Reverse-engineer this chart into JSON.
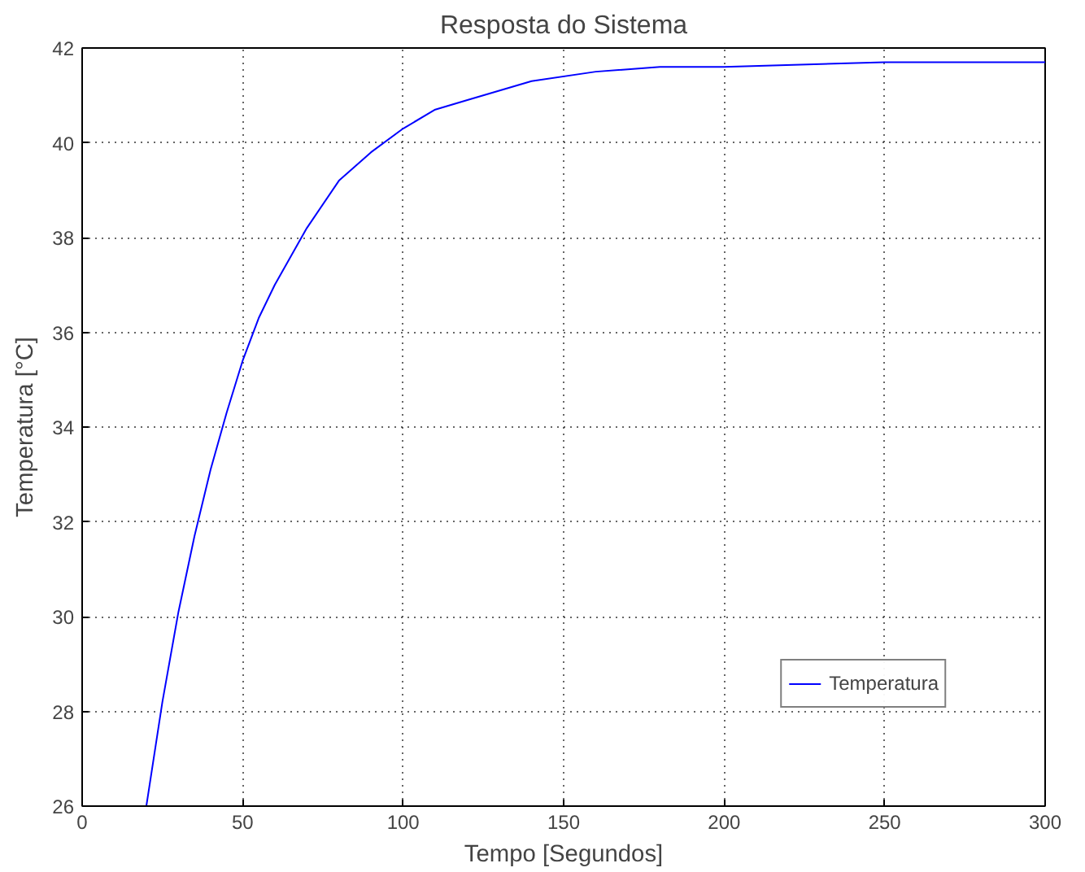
{
  "chart_data": {
    "type": "line",
    "title": "Resposta do Sistema",
    "xlabel": "Tempo [Segundos]",
    "ylabel": "Temperatura [°C]",
    "x": [
      0,
      20,
      25,
      30,
      35,
      40,
      45,
      50,
      55,
      60,
      70,
      80,
      90,
      100,
      110,
      120,
      140,
      160,
      180,
      200,
      250,
      300
    ],
    "series": [
      {
        "name": "Temperatura",
        "color": "#0000ff",
        "values": [
          26,
          26,
          28.2,
          30.1,
          31.7,
          33.1,
          34.3,
          35.4,
          36.3,
          37.0,
          38.2,
          39.2,
          39.8,
          40.3,
          40.7,
          40.9,
          41.3,
          41.5,
          41.6,
          41.6,
          41.7,
          41.7
        ]
      }
    ],
    "xlim": [
      0,
      300
    ],
    "ylim": [
      26,
      42
    ],
    "xticks": [
      0,
      50,
      100,
      150,
      200,
      250,
      300
    ],
    "yticks": [
      26,
      28,
      30,
      32,
      34,
      36,
      38,
      40,
      42
    ],
    "grid": true,
    "legend": "bottom right",
    "line_style": "solid"
  }
}
